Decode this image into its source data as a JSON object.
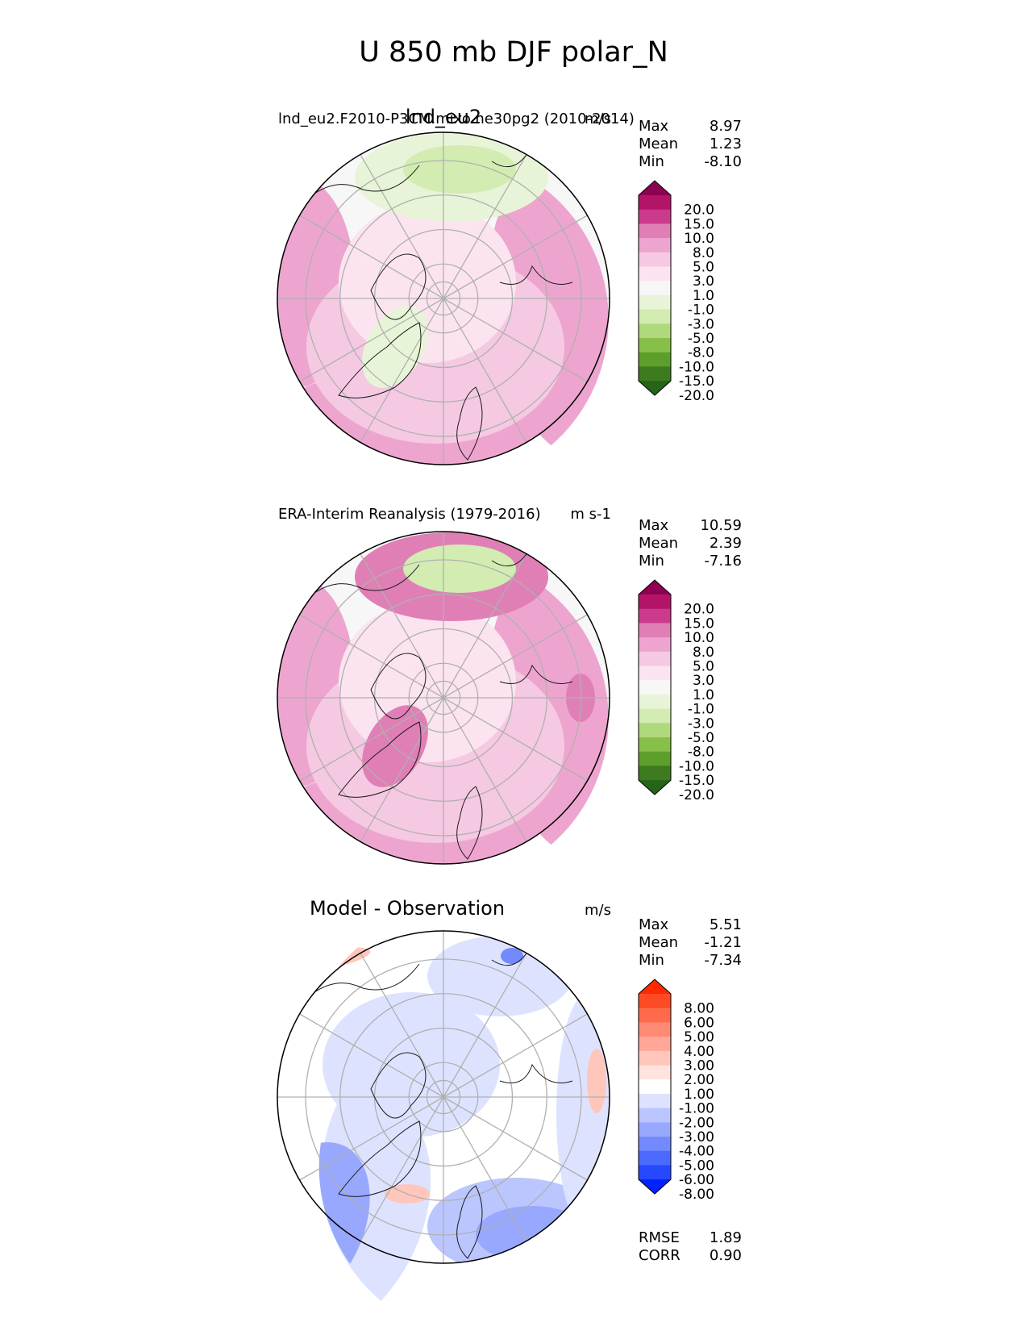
{
  "figure": {
    "title": "U 850 mb DJF polar_N"
  },
  "chart_data": [
    {
      "type": "polar-contour-map",
      "panel": "model",
      "title": "lnd_eu2",
      "subtitle": "lnd_eu2.F2010-P3CM.mixo.ne30pg2 (2010-2014)",
      "units": "m/s",
      "stats": {
        "max": "8.97",
        "mean": "1.23",
        "min": "-8.10"
      },
      "stat_labels": {
        "max": "Max",
        "mean": "Mean",
        "min": "Min"
      },
      "colorbar": {
        "ticks": [
          "20.0",
          "15.0",
          "10.0",
          "8.0",
          "5.0",
          "3.0",
          "1.0",
          "-1.0",
          "-3.0",
          "-5.0",
          "-8.0",
          "-10.0",
          "-15.0",
          "-20.0"
        ],
        "colors": [
          "#8e0152",
          "#b31468",
          "#cc3a8e",
          "#e07fb5",
          "#eda5cf",
          "#f5c9e2",
          "#fbe4f0",
          "#f7f7f7",
          "#e8f4d7",
          "#d2ecb2",
          "#afd97c",
          "#87c049",
          "#5c9f2b",
          "#3d7b1e",
          "#276419"
        ]
      },
      "field_colors": [
        "#f7f7f7",
        "#fbe4f0",
        "#f5c9e2",
        "#eda5cf",
        "#e8f4d7",
        "#d2ecb2"
      ]
    },
    {
      "type": "polar-contour-map",
      "panel": "observation",
      "title": "",
      "subtitle": "ERA-Interim Reanalysis (1979-2016)",
      "units": "m s-1",
      "stats": {
        "max": "10.59",
        "mean": "2.39",
        "min": "-7.16"
      },
      "stat_labels": {
        "max": "Max",
        "mean": "Mean",
        "min": "Min"
      },
      "colorbar": {
        "ticks": [
          "20.0",
          "15.0",
          "10.0",
          "8.0",
          "5.0",
          "3.0",
          "1.0",
          "-1.0",
          "-3.0",
          "-5.0",
          "-8.0",
          "-10.0",
          "-15.0",
          "-20.0"
        ],
        "colors": [
          "#8e0152",
          "#b31468",
          "#cc3a8e",
          "#e07fb5",
          "#eda5cf",
          "#f5c9e2",
          "#fbe4f0",
          "#f7f7f7",
          "#e8f4d7",
          "#d2ecb2",
          "#afd97c",
          "#87c049",
          "#5c9f2b",
          "#3d7b1e",
          "#276419"
        ]
      },
      "field_colors": [
        "#f7f7f7",
        "#fbe4f0",
        "#f5c9e2",
        "#eda5cf",
        "#e07fb5",
        "#d2ecb2"
      ]
    },
    {
      "type": "polar-contour-map",
      "panel": "difference",
      "title": "Model - Observation",
      "subtitle": "",
      "units": "m/s",
      "stats": {
        "max": "5.51",
        "mean": "-1.21",
        "min": "-7.34"
      },
      "stat_labels": {
        "max": "Max",
        "mean": "Mean",
        "min": "Min"
      },
      "extra_stats": [
        {
          "label": "RMSE",
          "value": "1.89"
        },
        {
          "label": "CORR",
          "value": "0.90"
        }
      ],
      "colorbar": {
        "ticks": [
          "8.00",
          "6.00",
          "5.00",
          "4.00",
          "3.00",
          "2.00",
          "1.00",
          "-1.00",
          "-2.00",
          "-3.00",
          "-4.00",
          "-5.00",
          "-6.00",
          "-8.00"
        ],
        "colors": [
          "#ff2a00",
          "#ff4a26",
          "#ff6a4d",
          "#ff8a73",
          "#ffa899",
          "#ffc6bb",
          "#ffe3dd",
          "#ffffff",
          "#dde3ff",
          "#bbc6ff",
          "#99a8ff",
          "#738aff",
          "#4d6aff",
          "#2649ff",
          "#0022ff"
        ]
      },
      "field_colors": [
        "#ffffff",
        "#dde3ff",
        "#bbc6ff",
        "#99a8ff",
        "#738aff",
        "#ffc6bb"
      ]
    }
  ]
}
